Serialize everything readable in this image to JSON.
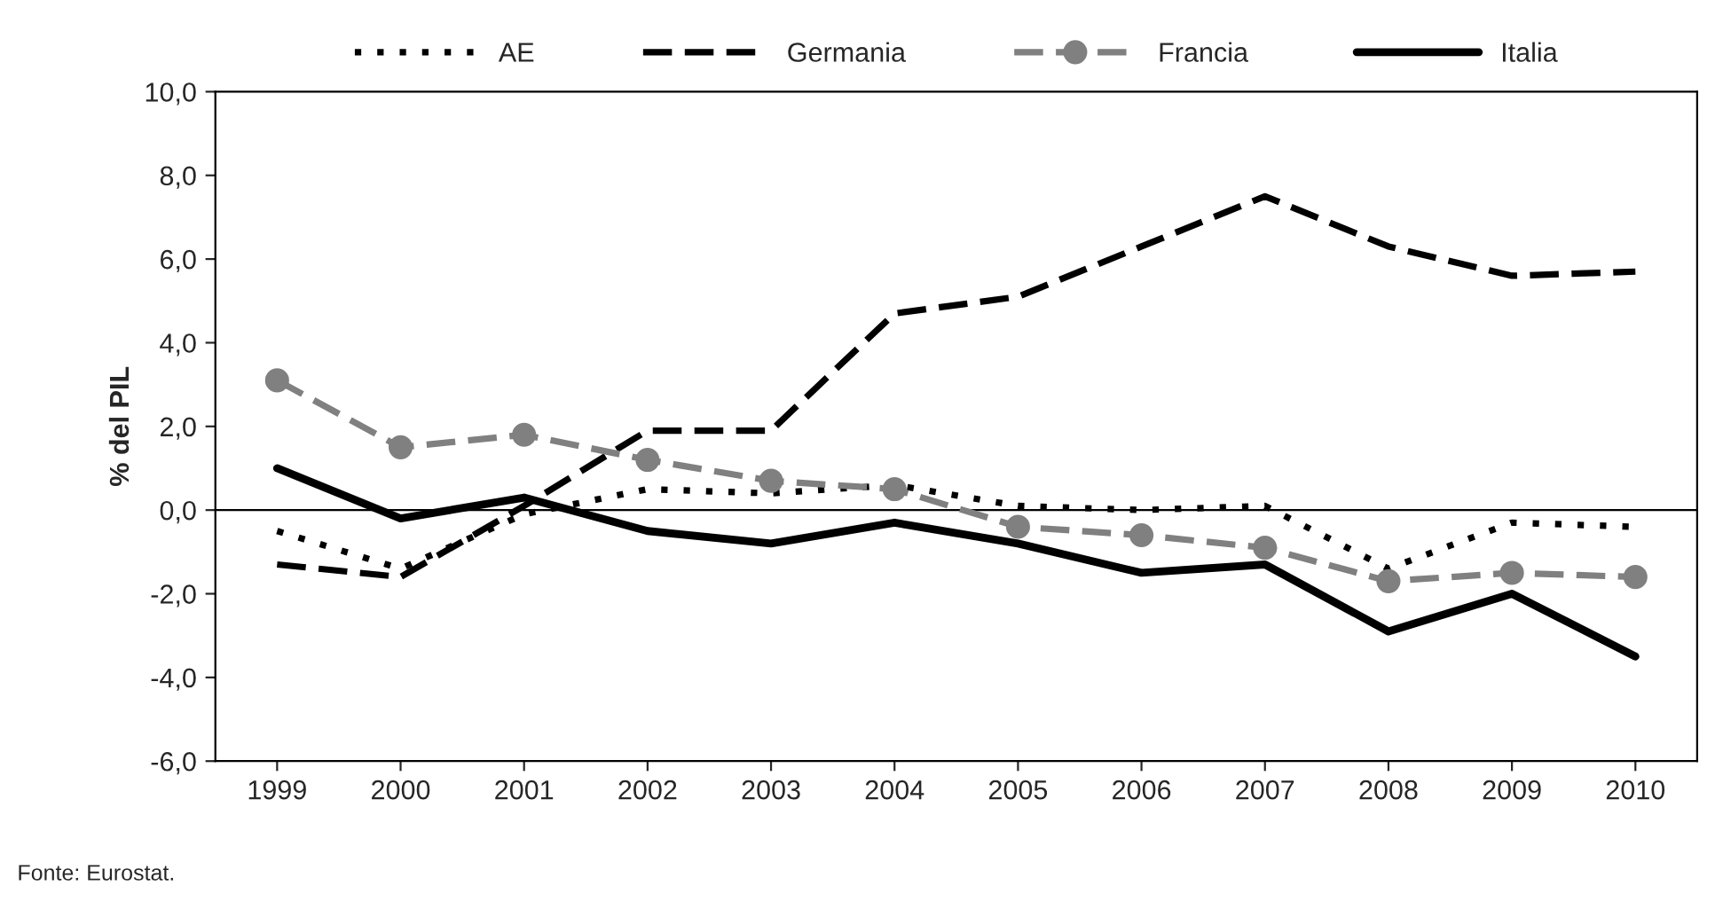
{
  "chart_data": {
    "type": "line",
    "ylabel": "% del PIL",
    "categories": [
      "1999",
      "2000",
      "2001",
      "2002",
      "2003",
      "2004",
      "2005",
      "2006",
      "2007",
      "2008",
      "2009",
      "2010"
    ],
    "series": [
      {
        "name": "AE",
        "color": "#000000",
        "line_style": "dotted",
        "marker": "none",
        "values": [
          -0.5,
          -1.4,
          -0.1,
          0.5,
          0.4,
          0.6,
          0.1,
          0.0,
          0.1,
          -1.4,
          -0.3,
          -0.4
        ]
      },
      {
        "name": "Germania",
        "color": "#000000",
        "line_style": "dashed",
        "marker": "none",
        "values": [
          -1.3,
          -1.6,
          0.1,
          1.9,
          1.9,
          4.7,
          5.1,
          6.3,
          7.5,
          6.3,
          5.6,
          5.7
        ]
      },
      {
        "name": "Francia",
        "color": "#808080",
        "line_style": "dashed",
        "marker": "circle",
        "values": [
          3.1,
          1.5,
          1.8,
          1.2,
          0.7,
          0.5,
          -0.4,
          -0.6,
          -0.9,
          -1.7,
          -1.5,
          -1.6
        ]
      },
      {
        "name": "Italia",
        "color": "#000000",
        "line_style": "solid",
        "marker": "none",
        "values": [
          1.0,
          -0.2,
          0.3,
          -0.5,
          -0.8,
          -0.3,
          -0.8,
          -1.5,
          -1.3,
          -2.9,
          -2.0,
          -3.5
        ]
      }
    ],
    "ylim": [
      -6,
      10
    ],
    "yticks": [
      {
        "value": -6,
        "label": "-6,0"
      },
      {
        "value": -4,
        "label": "-4,0"
      },
      {
        "value": -2,
        "label": "-2,0"
      },
      {
        "value": 0,
        "label": "0,0"
      },
      {
        "value": 2,
        "label": "2,0"
      },
      {
        "value": 4,
        "label": "4,0"
      },
      {
        "value": 6,
        "label": "6,0"
      },
      {
        "value": 8,
        "label": "8,0"
      },
      {
        "value": 10,
        "label": "10,0"
      }
    ],
    "ref_lines": [
      {
        "axis": "y",
        "value": 0,
        "color": "#000000"
      }
    ],
    "grid": false,
    "legend": "top",
    "annotations": [
      "Fonte: Eurostat."
    ]
  }
}
